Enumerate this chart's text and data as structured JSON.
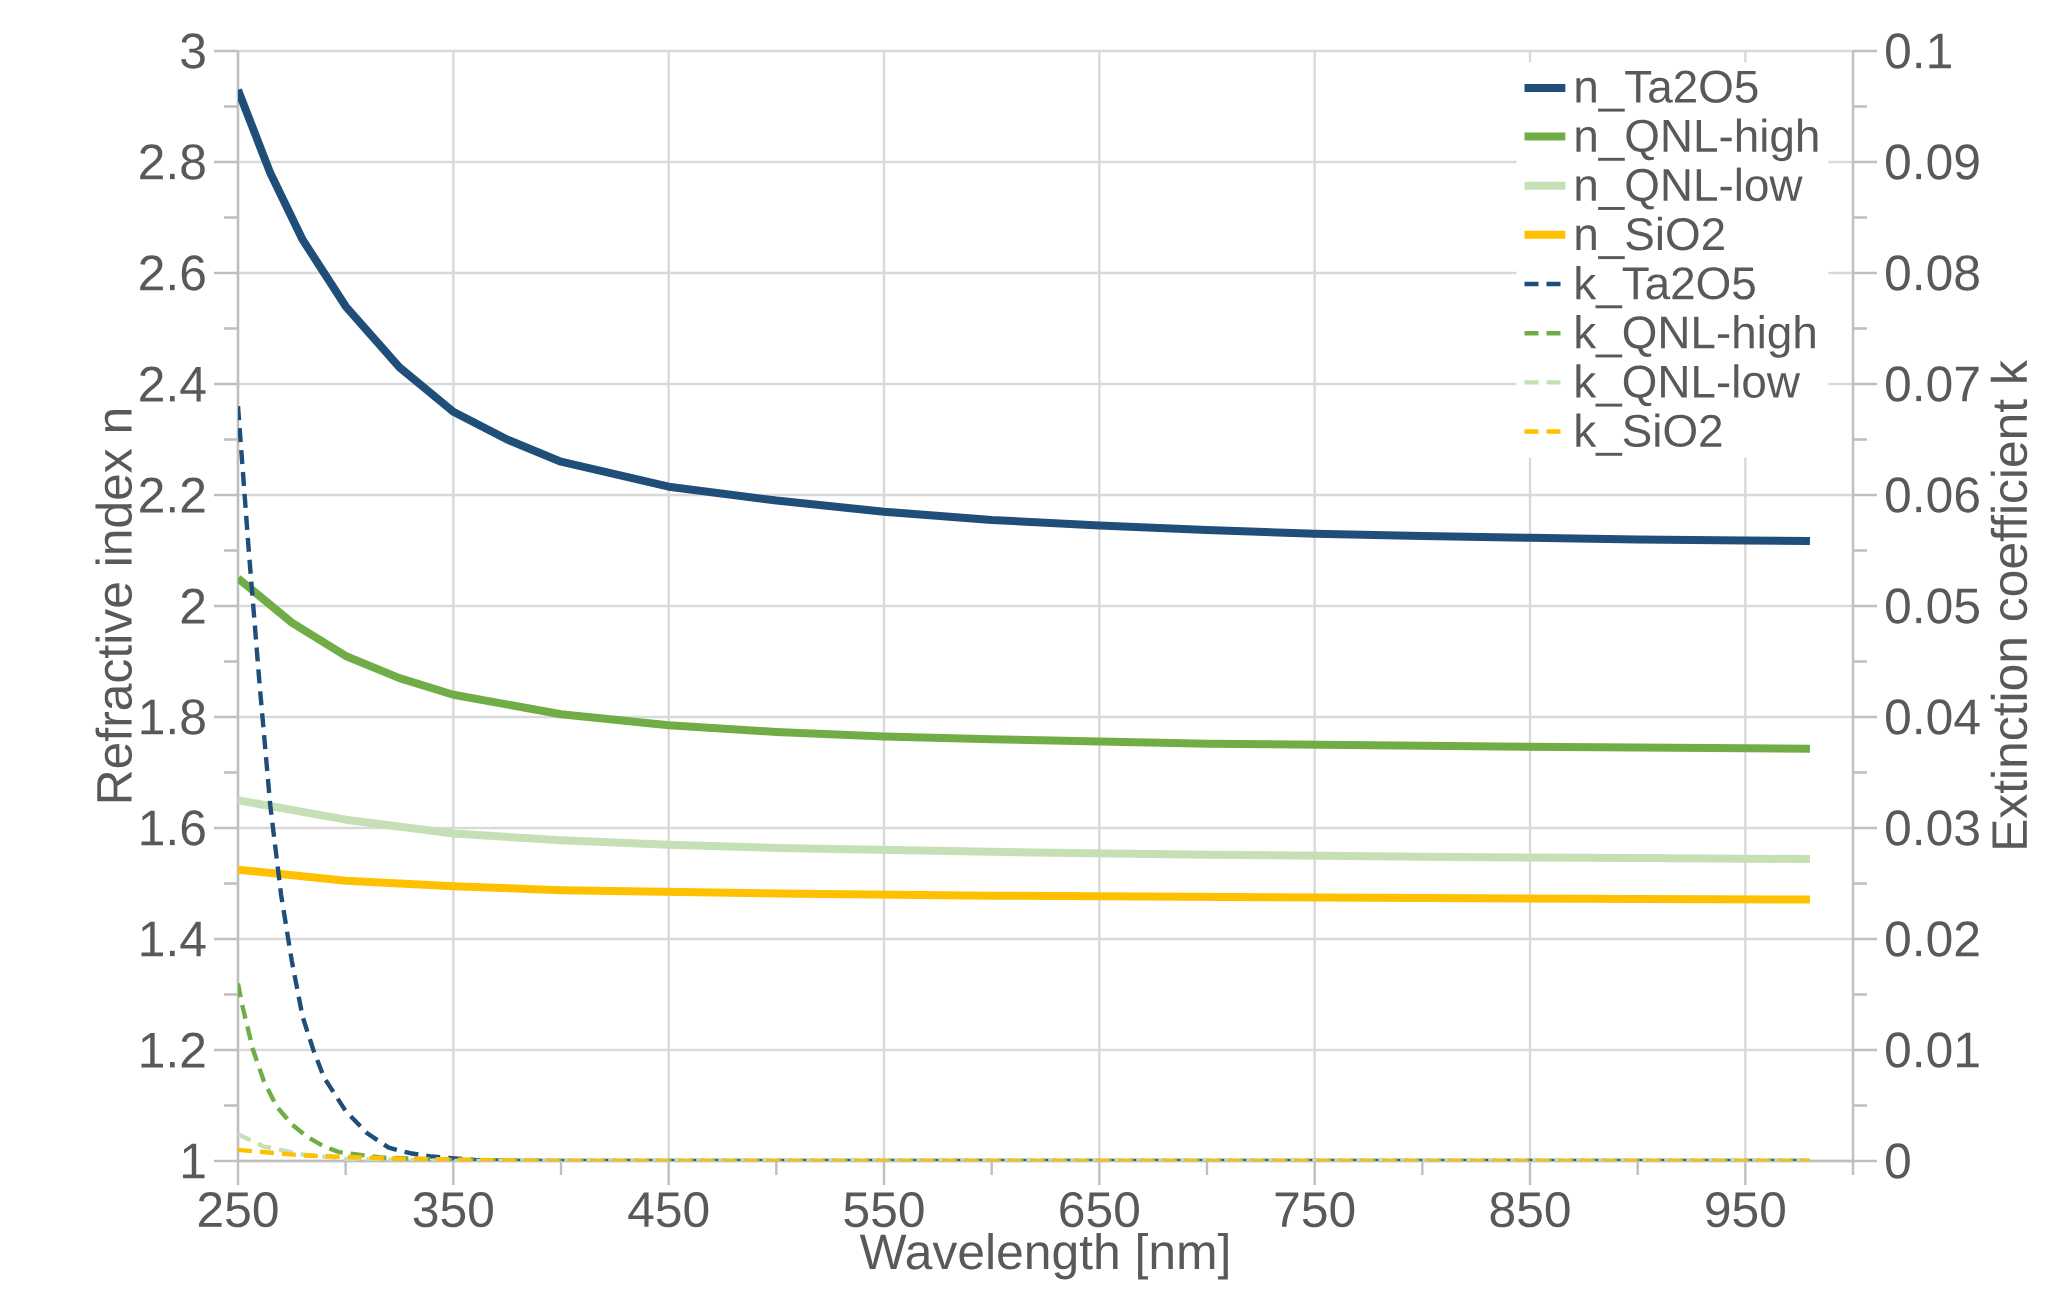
{
  "chart_data": {
    "type": "line",
    "xlabel": "Wavelength [nm]",
    "ylabel": "Refractive index n",
    "y2label": "Extinction coefficient k",
    "xlim": [
      250,
      1000
    ],
    "ylim": [
      1,
      3
    ],
    "y2lim": [
      0,
      0.1
    ],
    "xticks": [
      250,
      {
        "value": 300,
        "label": null
      },
      350,
      {
        "value": 400,
        "label": null
      },
      450,
      {
        "value": 500,
        "label": null
      },
      550,
      {
        "value": 600,
        "label": null
      },
      650,
      {
        "value": 700,
        "label": null
      },
      750,
      {
        "value": 800,
        "label": null
      },
      850,
      {
        "value": 900,
        "label": null
      },
      950,
      {
        "value": 1000,
        "label": null
      }
    ],
    "yticks": [
      1,
      {
        "value": 1.1,
        "label": null
      },
      1.2,
      {
        "value": 1.3,
        "label": null
      },
      1.4,
      {
        "value": 1.5,
        "label": null
      },
      1.6,
      {
        "value": 1.7,
        "label": null
      },
      1.8,
      {
        "value": 1.9,
        "label": null
      },
      2,
      {
        "value": 2.1,
        "label": null
      },
      2.2,
      {
        "value": 2.3,
        "label": null
      },
      2.4,
      {
        "value": 2.5,
        "label": null
      },
      2.6,
      {
        "value": 2.7,
        "label": null
      },
      2.8,
      {
        "value": 2.9,
        "label": null
      },
      3
    ],
    "y2ticks": [
      0,
      {
        "value": 0.005,
        "label": null
      },
      0.01,
      {
        "value": 0.015,
        "label": null
      },
      0.02,
      {
        "value": 0.025,
        "label": null
      },
      0.03,
      {
        "value": 0.035,
        "label": null
      },
      0.04,
      {
        "value": 0.045,
        "label": null
      },
      0.05,
      {
        "value": 0.055,
        "label": null
      },
      0.06,
      {
        "value": 0.065,
        "label": null
      },
      0.07,
      {
        "value": 0.075,
        "label": null
      },
      0.08,
      {
        "value": 0.085,
        "label": null
      },
      0.09,
      {
        "value": 0.095,
        "label": null
      },
      0.1
    ],
    "grid": true,
    "legend": "top right",
    "marker": "none",
    "series": [
      {
        "name": "n_Ta2O5",
        "color": "#1f4e79",
        "line_style": "solid",
        "x": [
          250,
          265,
          280,
          300,
          325,
          350,
          375,
          400,
          450,
          500,
          550,
          600,
          650,
          700,
          750,
          800,
          850,
          900,
          950,
          980
        ],
        "values": [
          2.93,
          2.78,
          2.66,
          2.54,
          2.43,
          2.35,
          2.3,
          2.26,
          2.215,
          2.19,
          2.17,
          2.155,
          2.145,
          2.137,
          2.13,
          2.126,
          2.123,
          2.12,
          2.118,
          2.117
        ]
      },
      {
        "name": "n_QNL-high",
        "color": "#70ad47",
        "line_style": "solid",
        "x": [
          250,
          275,
          300,
          325,
          350,
          400,
          450,
          500,
          550,
          600,
          700,
          800,
          900,
          980
        ],
        "values": [
          2.05,
          1.97,
          1.91,
          1.87,
          1.84,
          1.805,
          1.785,
          1.773,
          1.765,
          1.76,
          1.752,
          1.748,
          1.745,
          1.743
        ]
      },
      {
        "name": "n_QNL-low",
        "color": "#c5e0b4",
        "line_style": "solid",
        "x": [
          250,
          300,
          350,
          400,
          450,
          500,
          600,
          700,
          800,
          900,
          980
        ],
        "values": [
          1.65,
          1.615,
          1.59,
          1.578,
          1.57,
          1.564,
          1.557,
          1.552,
          1.548,
          1.546,
          1.544
        ]
      },
      {
        "name": "n_SiO2",
        "color": "#ffc000",
        "line_style": "solid",
        "x": [
          250,
          300,
          350,
          400,
          500,
          600,
          700,
          800,
          900,
          980
        ],
        "values": [
          1.525,
          1.505,
          1.495,
          1.488,
          1.482,
          1.478,
          1.476,
          1.474,
          1.472,
          1.471
        ]
      },
      {
        "name": "k_Ta2O5",
        "color": "#1f4e79",
        "line_style": "dashed",
        "axis": "y2",
        "x": [
          250,
          255,
          260,
          265,
          270,
          275,
          280,
          285,
          290,
          300,
          310,
          320,
          330,
          340,
          360,
          380,
          450,
          600,
          800,
          980
        ],
        "values": [
          0.068,
          0.055,
          0.043,
          0.032,
          0.024,
          0.018,
          0.013,
          0.01,
          0.0075,
          0.0045,
          0.0025,
          0.0012,
          0.0007,
          0.0004,
          0.0001,
          0,
          0,
          0,
          0,
          0
        ]
      },
      {
        "name": "k_QNL-high",
        "color": "#70ad47",
        "line_style": "dashed",
        "axis": "y2",
        "x": [
          250,
          252,
          257,
          262,
          268,
          275,
          282,
          290,
          297,
          317,
          350,
          400,
          600,
          800,
          980
        ],
        "values": [
          0.016,
          0.014,
          0.01,
          0.0072,
          0.0049,
          0.0033,
          0.0022,
          0.0013,
          0.0008,
          0.0003,
          0.0001,
          0,
          0,
          0,
          0
        ]
      },
      {
        "name": "k_QNL-low",
        "color": "#c5e0b4",
        "line_style": "dashed",
        "axis": "y2",
        "x": [
          250,
          262,
          280,
          300,
          350,
          600,
          980
        ],
        "values": [
          0.0024,
          0.0013,
          0.0006,
          0.0002,
          0,
          0,
          0
        ]
      },
      {
        "name": "k_SiO2",
        "color": "#ffc000",
        "line_style": "dashed",
        "axis": "y2",
        "x": [
          250,
          280,
          325,
          400,
          600,
          980
        ],
        "values": [
          0.001,
          0.0005,
          0.0002,
          0,
          0,
          0
        ]
      }
    ]
  }
}
